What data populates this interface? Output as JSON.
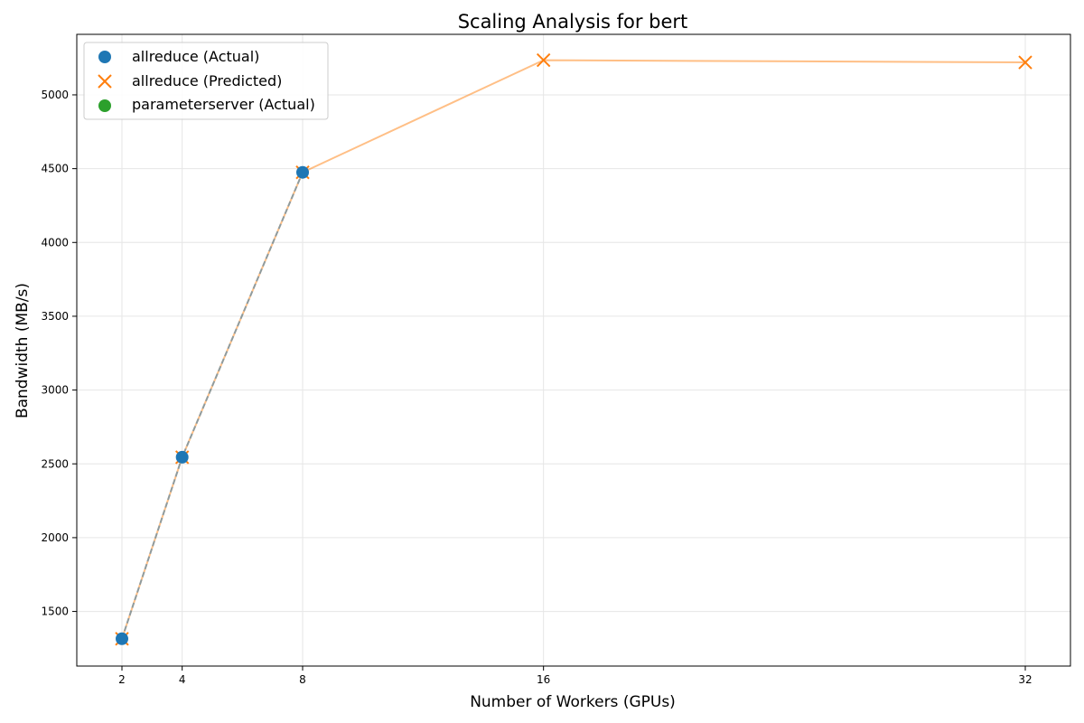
{
  "chart_data": {
    "type": "scatter",
    "title": "Scaling Analysis for bert",
    "xlabel": "Number of Workers (GPUs)",
    "ylabel": "Bandwidth (MB/s)",
    "xticks": [
      2,
      4,
      8,
      16,
      32
    ],
    "yticks": [
      1500,
      2000,
      2500,
      3000,
      3500,
      4000,
      4500,
      5000
    ],
    "xlim": [
      0.5,
      33.5
    ],
    "ylim": [
      1130,
      5410
    ],
    "grid": true,
    "legend_position": "upper-left",
    "colors": {
      "actual": "#1f77b4",
      "predicted": "#ff7f0e",
      "parameterserver": "#2ca02c"
    },
    "series": [
      {
        "name": "allreduce (Actual)",
        "marker": "circle",
        "color": "#1f77b4",
        "x": [
          2,
          4,
          8
        ],
        "y": [
          1315,
          2545,
          4475
        ]
      },
      {
        "name": "allreduce (Predicted)",
        "marker": "x",
        "color": "#ff7f0e",
        "x": [
          2,
          4,
          8,
          16,
          32
        ],
        "y": [
          1315,
          2545,
          4475,
          5235,
          5220
        ]
      },
      {
        "name": "parameterserver (Actual)",
        "marker": "circle",
        "color": "#2ca02c",
        "x": [],
        "y": []
      }
    ]
  }
}
